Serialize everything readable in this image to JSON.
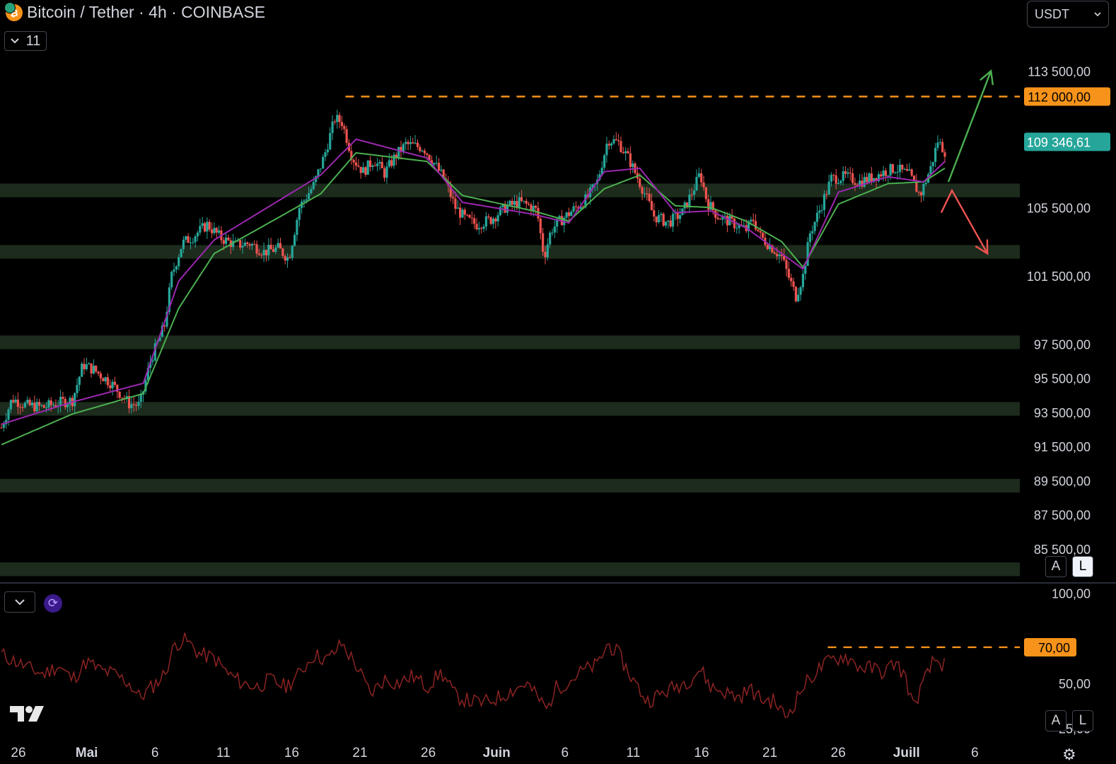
{
  "header": {
    "coin_icon": "bitcoin-tether-icon",
    "title": "Bitcoin / Tether · 4h · COINBASE",
    "legend_count": "11",
    "currency": "USDT"
  },
  "scale_buttons": {
    "auto": "A",
    "log": "L"
  },
  "colors": {
    "up": "#26a69a",
    "down": "#ef5350",
    "ema_fast": "#9c27b0",
    "ema_slow": "#4caf50",
    "zone": "#1c2b1c",
    "resistance": "#f7931a",
    "last_price": "#26a69a",
    "rsi": "#8c2323",
    "arrow_up": "#4caf50",
    "arrow_down": "#ef5350"
  },
  "chart_data": [
    {
      "type": "candlestick",
      "title": "Bitcoin / Tether · 4h · COINBASE",
      "ylim": [
        84000,
        116000
      ],
      "x_ticks": [
        "26",
        "Mai",
        "6",
        "11",
        "16",
        "21",
        "26",
        "Juin",
        "6",
        "11",
        "16",
        "21",
        "26",
        "Juill",
        "6"
      ],
      "y_ticks": [
        "113 500,00",
        "105 500,00",
        "101 500,00",
        "97 500,00",
        "95 500,00",
        "93 500,00",
        "91 500,00",
        "89 500,00",
        "87 500,00",
        "85 500,00"
      ],
      "close_path": [
        [
          0,
          92600
        ],
        [
          1.5,
          94300
        ],
        [
          3.5,
          93900
        ],
        [
          6,
          93800
        ],
        [
          8.5,
          94100
        ],
        [
          10,
          94200
        ],
        [
          11.5,
          96300
        ],
        [
          13,
          96000
        ],
        [
          15.5,
          95200
        ],
        [
          18,
          94000
        ],
        [
          19.5,
          93900
        ],
        [
          21,
          96500
        ],
        [
          23,
          98600
        ],
        [
          24,
          101500
        ],
        [
          25.5,
          103400
        ],
        [
          27,
          103800
        ],
        [
          29,
          104500
        ],
        [
          31,
          103700
        ],
        [
          33,
          103300
        ],
        [
          35,
          103400
        ],
        [
          37,
          102900
        ],
        [
          39,
          103100
        ],
        [
          40.5,
          102500
        ],
        [
          42,
          105500
        ],
        [
          44,
          106800
        ],
        [
          45.5,
          108500
        ],
        [
          47,
          110700
        ],
        [
          48,
          110500
        ],
        [
          49.5,
          108400
        ],
        [
          51,
          107600
        ],
        [
          52.5,
          108300
        ],
        [
          54,
          107500
        ],
        [
          55.5,
          108500
        ],
        [
          57,
          109200
        ],
        [
          59.5,
          109000
        ],
        [
          61,
          108100
        ],
        [
          62.5,
          107100
        ],
        [
          64,
          105500
        ],
        [
          65.5,
          104800
        ],
        [
          67,
          104500
        ],
        [
          69,
          104800
        ],
        [
          71,
          105500
        ],
        [
          73,
          105800
        ],
        [
          74.5,
          105600
        ],
        [
          75.5,
          105300
        ],
        [
          76.5,
          102600
        ],
        [
          77.5,
          104200
        ],
        [
          79,
          104800
        ],
        [
          81,
          105500
        ],
        [
          82.5,
          106000
        ],
        [
          84,
          107000
        ],
        [
          85.5,
          109500
        ],
        [
          87,
          109300
        ],
        [
          88.5,
          108300
        ],
        [
          90.5,
          106500
        ],
        [
          92,
          105000
        ],
        [
          94,
          104600
        ],
        [
          96,
          105200
        ],
        [
          97.5,
          106500
        ],
        [
          98.5,
          107500
        ],
        [
          99.5,
          105800
        ],
        [
          101,
          105000
        ],
        [
          103,
          104600
        ],
        [
          105,
          104200
        ],
        [
          106,
          104800
        ],
        [
          107,
          103800
        ],
        [
          108.5,
          103200
        ],
        [
          110,
          102600
        ],
        [
          111,
          101400
        ],
        [
          112,
          100300
        ],
        [
          113,
          101500
        ],
        [
          114,
          104000
        ],
        [
          115.5,
          105500
        ],
        [
          117,
          107200
        ],
        [
          119,
          107300
        ],
        [
          121,
          107000
        ],
        [
          123,
          107300
        ],
        [
          124.5,
          107600
        ],
        [
          126,
          107800
        ],
        [
          128,
          107400
        ],
        [
          129.5,
          106200
        ],
        [
          131,
          107800
        ],
        [
          132,
          109400
        ],
        [
          133,
          108800
        ]
      ],
      "ema_fast": {
        "color": "#9c27b0",
        "x": [
          0,
          10,
          20,
          25,
          30,
          45,
          50,
          60,
          65,
          75,
          80,
          85,
          90,
          95,
          100,
          105,
          110,
          113,
          118,
          125,
          130,
          133
        ],
        "y": [
          92800,
          94100,
          95200,
          101200,
          103600,
          107400,
          109500,
          108400,
          105800,
          105100,
          104600,
          107600,
          107800,
          105200,
          105300,
          104300,
          102800,
          101900,
          106400,
          107300,
          107000,
          108200
        ]
      },
      "ema_slow": {
        "color": "#4caf50",
        "x": [
          0,
          10,
          20,
          25,
          30,
          45,
          50,
          60,
          65,
          75,
          80,
          85,
          90,
          95,
          100,
          105,
          110,
          113,
          118,
          125,
          130,
          133
        ],
        "y": [
          91600,
          93400,
          94600,
          99600,
          102800,
          106300,
          108700,
          108200,
          106200,
          105300,
          104700,
          106600,
          107400,
          105600,
          105500,
          104700,
          103500,
          102000,
          105700,
          106900,
          107000,
          107800
        ]
      },
      "last_price": 109346.61,
      "last_price_label": "109 346,61",
      "resistance": {
        "value": 112000,
        "label": "112 000,00",
        "from_x": 48.5
      },
      "support_zones": [
        [
          106100,
          106900
        ],
        [
          102500,
          103300
        ],
        [
          97200,
          98000
        ],
        [
          93300,
          94100
        ],
        [
          88800,
          89600
        ],
        [
          83900,
          84700
        ]
      ],
      "scenario_arrows": [
        {
          "direction": "up",
          "from": [
            133.5,
            107000
          ],
          "to": [
            139.5,
            113500
          ]
        },
        {
          "direction": "down",
          "from": [
            132.5,
            105200
          ],
          "via": [
            134,
            106500
          ],
          "to": [
            139,
            102800
          ]
        }
      ]
    },
    {
      "type": "line",
      "name": "RSI",
      "ylim": [
        20,
        105
      ],
      "y_ticks": [
        "100,00",
        "50,00",
        "25,00"
      ],
      "overbought_label": "70,00",
      "overbought_level": 70,
      "overbought_from_x": 116.5,
      "series": [
        {
          "x": [
            0,
            2,
            4,
            6,
            8,
            10,
            12,
            14,
            16,
            18,
            19.5,
            21,
            23,
            24.5,
            26,
            28,
            30,
            32,
            34,
            36,
            38,
            40,
            42,
            44,
            46,
            48,
            50,
            52,
            54,
            56,
            58,
            60,
            62,
            64,
            66,
            68,
            70,
            72,
            74,
            76,
            77,
            78,
            80,
            82,
            84,
            85.5,
            87,
            89,
            91,
            93,
            95,
            97,
            98.5,
            100,
            102,
            104,
            105.5,
            107,
            109,
            110.5,
            111.5,
            113,
            115,
            117,
            119,
            121,
            123,
            124.5,
            126,
            127.5,
            128.5,
            130,
            131.5,
            133
          ],
          "y": [
            66,
            62,
            58,
            55,
            60,
            52,
            62,
            57,
            55,
            50,
            42,
            47,
            55,
            72,
            74,
            66,
            64,
            55,
            50,
            48,
            52,
            48,
            55,
            66,
            63,
            72,
            60,
            44,
            52,
            50,
            54,
            48,
            56,
            43,
            40,
            39,
            42,
            46,
            50,
            40,
            35,
            47,
            51,
            57,
            60,
            72,
            66,
            52,
            40,
            44,
            48,
            52,
            58,
            48,
            45,
            42,
            47,
            41,
            40,
            31,
            37,
            48,
            57,
            63,
            65,
            59,
            58,
            56,
            62,
            53,
            37,
            50,
            63,
            60
          ]
        }
      ]
    }
  ]
}
